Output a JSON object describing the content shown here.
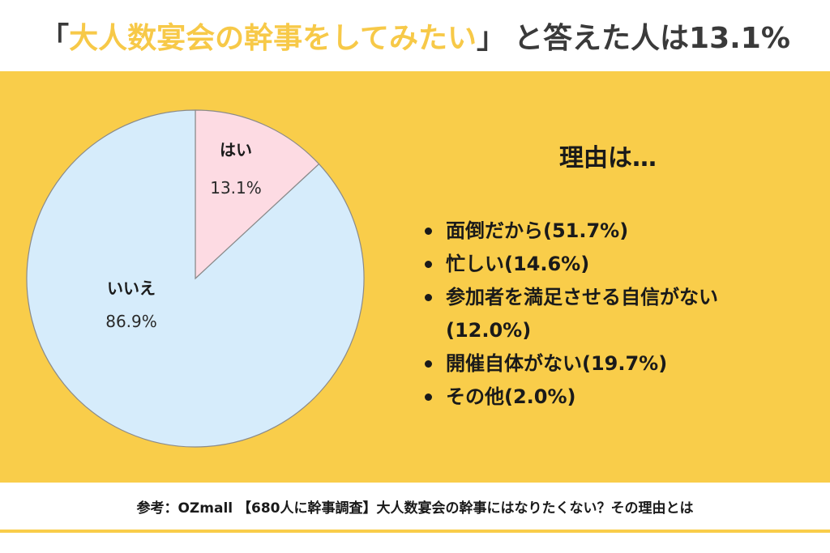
{
  "title": {
    "open_bracket": "「",
    "highlight": "大人数宴会の幹事をしてみたい",
    "close_bracket": "」",
    "rest": "と答えた人は13.1%"
  },
  "chart_data": {
    "type": "pie",
    "title": "「大人数宴会の幹事をしてみたい」と答えた人は13.1%",
    "start": "12 o'clock",
    "direction": "clockwise",
    "slices": [
      {
        "label": "はい",
        "value": 13.1,
        "value_label": "13.1%",
        "color": "#fddbe3"
      },
      {
        "label": "いいえ",
        "value": 86.9,
        "value_label": "86.9%",
        "color": "#d6ecfb"
      }
    ]
  },
  "reasons": {
    "title": "理由は…",
    "items": [
      {
        "text": "面倒だから",
        "pct": "(51.7%)"
      },
      {
        "text": "忙しい",
        "pct": "(14.6%)"
      },
      {
        "text": "参加者を満足させる自信がない",
        "pct": "(12.0%)"
      },
      {
        "text": "開催自体がない",
        "pct": "(19.7%)"
      },
      {
        "text": "その他",
        "pct": "(2.0%)"
      }
    ]
  },
  "footer": {
    "text": "参考：OZmall 【680人に幹事調査】大人数宴会の幹事にはなりたくない？その理由とは"
  },
  "colors": {
    "panel_bg": "#f9cd4a",
    "highlight": "#f7c948",
    "slice_yes": "#fddbe3",
    "slice_no": "#d6ecfb"
  }
}
